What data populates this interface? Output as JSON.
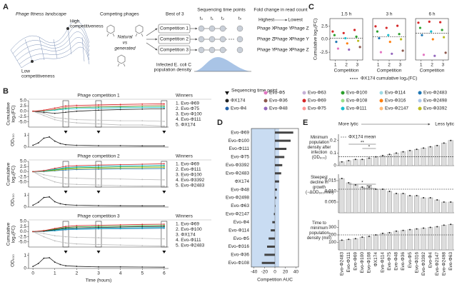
{
  "diagram": {
    "panel_labels": [
      "A",
      "B",
      "C",
      "D",
      "E"
    ],
    "landscape": {
      "title": "Phage fitness landscape",
      "high": [
        "High",
        "competitiveness"
      ],
      "low": [
        "Low",
        "competitiveness"
      ]
    },
    "competing": {
      "title": "Competing phages",
      "natural": "Natural",
      "vs": "vs",
      "generated": "generated"
    },
    "best_of": "Best of 3",
    "competitions": [
      "Competition 1",
      "Competition 2",
      "Competition 3"
    ],
    "sequencing": {
      "title": "Sequencing time points",
      "points": [
        "t₀",
        "t₁",
        "t₂",
        "tₙ"
      ]
    },
    "fold_change": {
      "title": "Fold change in read count",
      "highest": "Highest",
      "lowest": "Lowest",
      "rows": [
        [
          "Phage X",
          "Phage Y",
          "Phage Z"
        ],
        [
          "Phage Z",
          "Phage X",
          "Phage Y"
        ],
        [
          "Phage Y",
          "Phage X",
          "Phage Z"
        ]
      ]
    },
    "density": [
      "Infected E. coli C",
      "population density"
    ],
    "c_caption": "ΦX174 cumulative log₂(FC)",
    "legend": {
      "title": "Sequencing time point",
      "items": [
        {
          "name": "ΦX174",
          "color": "#222222"
        },
        {
          "name": "Evo-Φ4",
          "color": "#1f5fa8"
        },
        {
          "name": "Evo-Φ5",
          "color": "#e377c2"
        },
        {
          "name": "Evo-Φ36",
          "color": "#8c564b"
        },
        {
          "name": "Evo-Φ48",
          "color": "#9467bd"
        },
        {
          "name": "Evo-Φ63",
          "color": "#c5b0d5"
        },
        {
          "name": "Evo-Φ69",
          "color": "#d62728"
        },
        {
          "name": "Evo-Φ75",
          "color": "#ff9896"
        },
        {
          "name": "Evo-Φ100",
          "color": "#2ca02c"
        },
        {
          "name": "Evo-Φ108",
          "color": "#98df8a"
        },
        {
          "name": "Evo-Φ111",
          "color": "#17becf"
        },
        {
          "name": "Evo-Φ114",
          "color": "#9edae5"
        },
        {
          "name": "Evo-Φ316",
          "color": "#ff7f0e"
        },
        {
          "name": "Evo-Φ2147",
          "color": "#ffbb78"
        },
        {
          "name": "Evo-Φ2483",
          "color": "#1f77b4"
        },
        {
          "name": "Evo-Φ2498",
          "color": "#aec7e8"
        },
        {
          "name": "Evo-Φ3392",
          "color": "#bcbd22"
        }
      ]
    }
  },
  "chart_data": [
    {
      "type": "line",
      "title": "Phage competition 1",
      "ylabel": [
        "Cumulative",
        "log₂(FC)"
      ],
      "winners_title": "Winners",
      "winners": [
        "1. Evo-Φ69",
        "2. Evo-Φ75",
        "3. Evo-Φ100",
        "4. Evo-Φ111",
        "5. ΦX174"
      ],
      "highlight": "box",
      "highlight_x": [
        1.5,
        3,
        6
      ],
      "x": [
        0,
        0.5,
        1,
        1.5,
        2,
        3,
        4,
        5,
        6
      ],
      "xlim": [
        -0.2,
        6.2
      ],
      "ylim": [
        -7.5,
        5
      ],
      "yticks": [
        {
          "value": 5,
          "label": "5.0"
        },
        {
          "value": 2.5,
          "label": "2.5"
        },
        {
          "value": 0,
          "label": "0.0"
        },
        {
          "value": -2.5,
          "label": "-2.5"
        },
        {
          "value": -5,
          "label": "-5.0"
        }
      ],
      "series": [
        {
          "color": "#bbbbbb",
          "values": [
            0,
            -2,
            -4,
            -5,
            -5.5,
            -6,
            -6.5,
            -6.5,
            -7
          ]
        },
        {
          "color": "#bbbbbb",
          "values": [
            0,
            -1,
            -3,
            -3.5,
            -4,
            -4.2,
            -4.5,
            -4.5,
            -4.8
          ]
        },
        {
          "color": "#222222",
          "values": [
            0,
            -0.5,
            -1,
            -0.5,
            0,
            0.5,
            0.8,
            1,
            1.2
          ]
        },
        {
          "color": "#17becf",
          "values": [
            0,
            0.1,
            0.5,
            1,
            1.2,
            1.5,
            1.6,
            1.7,
            1.8
          ]
        },
        {
          "color": "#2ca02c",
          "values": [
            0,
            0.2,
            0.8,
            1.5,
            1.8,
            2,
            2.1,
            2.3,
            2.4
          ]
        },
        {
          "color": "#ff9896",
          "values": [
            0,
            0.3,
            1,
            2,
            2.2,
            2.5,
            2.6,
            2.8,
            3
          ]
        },
        {
          "color": "#d62728",
          "values": [
            0,
            0.5,
            1.5,
            2.5,
            2.8,
            3,
            3.2,
            3.4,
            3.5
          ]
        }
      ]
    },
    {
      "type": "line",
      "ylabel": "OD₆₀₀",
      "highlight": "triangle",
      "highlight_x": [
        1.5,
        3,
        6
      ],
      "x": [
        0,
        0.25,
        0.5,
        0.75,
        1,
        1.25,
        1.5,
        2,
        3,
        4,
        5,
        6
      ],
      "xlim": [
        -0.2,
        6.2
      ],
      "ylim": [
        0,
        1.2
      ],
      "yticks": [
        0,
        1
      ],
      "series": [
        {
          "color": "#222222",
          "values": [
            0.15,
            0.35,
            0.75,
            0.85,
            0.5,
            0.3,
            0.2,
            0.15,
            0.12,
            0.12,
            0.1,
            0.1
          ]
        }
      ]
    },
    {
      "type": "line",
      "title": "Phage competition 2",
      "ylabel": [
        "Cumulative",
        "log₂(FC)"
      ],
      "winners_title": "Winners",
      "winners": [
        "1. Evo-Φ69",
        "2. Evo-Φ111",
        "3. Evo-Φ100",
        "4. Evo-Φ3392",
        "5. Evo-Φ2483"
      ],
      "highlight": "box",
      "highlight_x": [
        1.5,
        3,
        6
      ],
      "x": [
        0,
        0.5,
        1,
        1.5,
        2,
        3,
        4,
        5,
        6
      ],
      "xlim": [
        -0.2,
        6.2
      ],
      "ylim": [
        -7.5,
        5
      ],
      "yticks": [
        {
          "value": 5,
          "label": "5.0"
        },
        {
          "value": 2.5,
          "label": "2.5"
        },
        {
          "value": 0,
          "label": "0.0"
        },
        {
          "value": -2.5,
          "label": "-2.5"
        },
        {
          "value": -5,
          "label": "-5.0"
        }
      ],
      "series": [
        {
          "color": "#bbbbbb",
          "values": [
            0,
            -3,
            -5,
            -6,
            -6.2,
            -6.5,
            -6.8,
            -7,
            -7
          ]
        },
        {
          "color": "#bbbbbb",
          "values": [
            0,
            -1.5,
            -2.5,
            -3,
            -3.2,
            -3.5,
            -3.6,
            -3.8,
            -4
          ]
        },
        {
          "color": "#1f77b4",
          "values": [
            0,
            0,
            0.4,
            0.8,
            1,
            1.2,
            1.3,
            1.4,
            1.5
          ]
        },
        {
          "color": "#bcbd22",
          "values": [
            0,
            0.2,
            0.6,
            1.2,
            1.4,
            1.6,
            1.8,
            1.9,
            2
          ]
        },
        {
          "color": "#2ca02c",
          "values": [
            0,
            0.3,
            0.9,
            1.6,
            1.9,
            2.1,
            2.3,
            2.4,
            2.6
          ]
        },
        {
          "color": "#17becf",
          "values": [
            0,
            0.4,
            1.2,
            2,
            2.3,
            2.6,
            2.8,
            3,
            3.1
          ]
        },
        {
          "color": "#d62728",
          "values": [
            0,
            0.5,
            1.6,
            2.6,
            2.9,
            3.2,
            3.4,
            3.6,
            3.8
          ]
        }
      ]
    },
    {
      "type": "line",
      "ylabel": "OD₆₀₀",
      "highlight": "triangle",
      "highlight_x": [
        1.5,
        3,
        6
      ],
      "x": [
        0,
        0.25,
        0.5,
        0.75,
        1,
        1.25,
        1.5,
        2,
        3,
        4,
        5,
        6
      ],
      "xlim": [
        -0.2,
        6.2
      ],
      "ylim": [
        0,
        1.2
      ],
      "yticks": [
        0,
        1
      ],
      "series": [
        {
          "color": "#222222",
          "values": [
            0.15,
            0.4,
            0.8,
            0.85,
            0.45,
            0.28,
            0.2,
            0.15,
            0.12,
            0.11,
            0.1,
            0.1
          ]
        }
      ]
    },
    {
      "type": "line",
      "title": "Phage competition 3",
      "ylabel": [
        "Cumulative",
        "log₂(FC)"
      ],
      "winners_title": "Winners",
      "winners": [
        "1. Evo-Φ69",
        "2. Evo-Φ100",
        "3. ΦX174",
        "4. Evo-Φ111",
        "5. Evo-Φ2483"
      ],
      "highlight": "box",
      "highlight_x": [
        1.5,
        3,
        6
      ],
      "x": [
        0,
        0.5,
        1,
        1.5,
        2,
        3,
        4,
        5,
        6
      ],
      "xlim": [
        -0.2,
        6.2
      ],
      "ylim": [
        -7.5,
        5
      ],
      "yticks": [
        {
          "value": 5,
          "label": "5.0"
        },
        {
          "value": 2.5,
          "label": "2.5"
        },
        {
          "value": 0,
          "label": "0.0"
        },
        {
          "value": -2.5,
          "label": "-2.5"
        },
        {
          "value": -5,
          "label": "-5.0"
        }
      ],
      "series": [
        {
          "color": "#bbbbbb",
          "values": [
            0,
            -2.5,
            -4.5,
            -5.5,
            -6,
            -6.3,
            -6.5,
            -6.8,
            -7
          ]
        },
        {
          "color": "#bbbbbb",
          "values": [
            0,
            -1,
            -2,
            -2.5,
            -2.8,
            -3,
            -3.2,
            -3.3,
            -3.5
          ]
        },
        {
          "color": "#1f77b4",
          "values": [
            0,
            0.1,
            0.4,
            0.9,
            1.1,
            1.3,
            1.4,
            1.5,
            1.6
          ]
        },
        {
          "color": "#17becf",
          "values": [
            0,
            0.2,
            0.6,
            1.2,
            1.4,
            1.6,
            1.7,
            1.9,
            2
          ]
        },
        {
          "color": "#222222",
          "values": [
            0,
            0.2,
            0.9,
            1.6,
            1.8,
            2,
            2.2,
            2.4,
            2.5
          ]
        },
        {
          "color": "#2ca02c",
          "values": [
            0,
            0.4,
            1.2,
            2,
            2.3,
            2.5,
            2.7,
            2.9,
            3
          ]
        },
        {
          "color": "#d62728",
          "values": [
            0,
            0.5,
            1.5,
            2.5,
            2.9,
            3.1,
            3.3,
            3.5,
            3.6
          ]
        }
      ]
    },
    {
      "type": "line",
      "ylabel": "OD₆₀₀",
      "highlight": "triangle",
      "highlight_x": [
        1.5,
        3,
        6
      ],
      "x": [
        0,
        0.25,
        0.5,
        0.75,
        1,
        1.25,
        1.5,
        2,
        3,
        4,
        5,
        6
      ],
      "xlim": [
        -0.2,
        6.2
      ],
      "ylim": [
        0,
        1.2
      ],
      "yticks": [
        0,
        1
      ],
      "xticks": [
        0,
        1,
        2,
        3,
        4,
        5,
        6
      ],
      "xlabel": "Time (hours)",
      "series": [
        {
          "color": "#222222",
          "values": [
            0.15,
            0.38,
            0.78,
            0.82,
            0.48,
            0.3,
            0.2,
            0.16,
            0.12,
            0.12,
            0.11,
            0.1
          ]
        }
      ]
    },
    {
      "type": "scatter",
      "title": "1.5 h",
      "ylabel": "Cumulative log₂(FC)",
      "xlabel": "Competition",
      "xlim": [
        0.5,
        3.5
      ],
      "xticks": [
        1,
        2,
        3
      ],
      "ylim": [
        -4,
        4
      ],
      "yticks": [
        {
          "value": 2.5,
          "label": "2.5"
        },
        {
          "value": 0,
          "label": "0.0"
        },
        {
          "value": -2.5,
          "label": "-2.5"
        }
      ],
      "reference": 0.2,
      "x": [
        1,
        1,
        1,
        1,
        2,
        2,
        2,
        2,
        3,
        3,
        3,
        3
      ],
      "values": [
        1.5,
        0.8,
        -0.5,
        -1.8,
        1.2,
        0.2,
        -0.8,
        -2,
        1.8,
        0.5,
        -0.3,
        -1.5
      ],
      "colors": [
        "#d62728",
        "#2ca02c",
        "#1f77b4",
        "#e377c2",
        "#d62728",
        "#17becf",
        "#ff7f0e",
        "#9467bd",
        "#d62728",
        "#2ca02c",
        "#bcbd22",
        "#8c564b"
      ]
    },
    {
      "type": "scatter",
      "title": "3 h",
      "xlabel": "Competition",
      "xlim": [
        0.5,
        3.5
      ],
      "xticks": [
        1,
        2,
        3
      ],
      "ylim": [
        -4,
        4
      ],
      "reference": 0.5,
      "x": [
        1,
        1,
        1,
        1,
        2,
        2,
        2,
        2,
        3,
        3,
        3,
        3
      ],
      "values": [
        2.5,
        1.5,
        0.2,
        -2.5,
        2.2,
        0.8,
        -0.5,
        -2.8,
        2.6,
        1,
        0,
        -2.2
      ],
      "colors": [
        "#d62728",
        "#2ca02c",
        "#1f77b4",
        "#e377c2",
        "#d62728",
        "#17becf",
        "#ff7f0e",
        "#9467bd",
        "#d62728",
        "#2ca02c",
        "#bcbd22",
        "#8c564b"
      ]
    },
    {
      "type": "scatter",
      "title": "6 h",
      "xlabel": "Competition",
      "xlim": [
        0.5,
        3.5
      ],
      "xticks": [
        1,
        2,
        3
      ],
      "ylim": [
        -4,
        4
      ],
      "reference": 1.2,
      "x": [
        1,
        1,
        1,
        1,
        2,
        2,
        2,
        2,
        3,
        3,
        3,
        3
      ],
      "values": [
        3.2,
        2.2,
        0.8,
        -3,
        3.4,
        1.5,
        0,
        -3.2,
        3.3,
        1.8,
        0.4,
        -2.6
      ],
      "colors": [
        "#d62728",
        "#2ca02c",
        "#1f77b4",
        "#e377c2",
        "#d62728",
        "#17becf",
        "#ff7f0e",
        "#9467bd",
        "#d62728",
        "#2ca02c",
        "#bcbd22",
        "#8c564b"
      ]
    },
    {
      "type": "bar",
      "orientation": "horizontal",
      "xlabel": "Competition AUC",
      "reference": "ΦX174",
      "xlim": [
        -45,
        45
      ],
      "xticks": [
        -40,
        -20,
        0,
        20,
        40
      ],
      "color": "#444444",
      "categories": [
        "Evo-Φ69",
        "Evo-Φ100",
        "Evo-Φ111",
        "Evo-Φ75",
        "Evo-Φ3392",
        "Evo-Φ2483",
        "ΦX174",
        "Evo-Φ48",
        "Evo-Φ2498",
        "Evo-Φ63",
        "Evo-Φ2147",
        "Evo-Φ4",
        "Evo-Φ114",
        "Evo-Φ5",
        "Evo-Φ316",
        "Evo-Φ36",
        "Evo-Φ108"
      ],
      "values": [
        35,
        30,
        22,
        18,
        14,
        12,
        8,
        4,
        3,
        1,
        -2,
        -5,
        -8,
        -12,
        -15,
        -20,
        -25
      ]
    },
    {
      "type": "bar",
      "header": {
        "left": "More lytic",
        "right": "Less lytic"
      },
      "ylabel": "Minimum population density after infection (OD₆₀₀)",
      "reference": "ΦX174",
      "reference_label": "ΦX174 mean",
      "annotations": [
        "**",
        "*"
      ],
      "ylim": [
        0,
        0.25
      ],
      "yticks": [
        0,
        0.1,
        0.2
      ],
      "color": "#dddddd",
      "values": [
        0.03,
        0.04,
        0.05,
        0.05,
        0.06,
        0.07,
        0.08,
        0.09,
        0.1,
        0.11,
        0.12,
        0.13,
        0.14,
        0.15,
        0.16,
        0.18,
        0.2
      ]
    },
    {
      "type": "bar",
      "ylabel": "Steepest decline in growth (−ΔOD₆₀₀/min)",
      "reference": "ΦX174",
      "annotations": [
        "*",
        "***"
      ],
      "ylim": [
        0,
        0.018
      ],
      "yticks": [
        {
          "value": 0.005,
          "label": "0.005"
        },
        {
          "value": 0.01,
          "label": "0.010"
        },
        {
          "value": 0.015,
          "label": "0.015"
        }
      ],
      "color": "#dddddd",
      "values": [
        0.016,
        0.014,
        0.013,
        0.012,
        0.012,
        0.011,
        0.011,
        0.01,
        0.009,
        0.009,
        0.008,
        0.008,
        0.007,
        0.007,
        0.006,
        0.005,
        0.005
      ]
    },
    {
      "type": "bar",
      "ylabel": "Time to minimum population density (min)",
      "reference": "ΦX174",
      "ylim": [
        0,
        400
      ],
      "yticks": [
        100,
        200,
        300
      ],
      "color": "#dddddd",
      "categories": [
        "Evo-Φ2483",
        "Evo-Φ111",
        "Evo-Φ69",
        "Evo-Φ100",
        "Evo-Φ108",
        "ΦX174",
        "Evo-Φ114",
        "Evo-Φ75",
        "Evo-Φ48",
        "Evo-Φ36",
        "Evo-Φ5",
        "Evo-Φ316",
        "Evo-Φ3392",
        "Evo-Φ4",
        "Evo-Φ2147",
        "Evo-Φ2498",
        "Evo-Φ63"
      ],
      "values": [
        130,
        140,
        150,
        170,
        180,
        200,
        220,
        230,
        250,
        260,
        270,
        280,
        290,
        300,
        310,
        330,
        340
      ]
    }
  ]
}
